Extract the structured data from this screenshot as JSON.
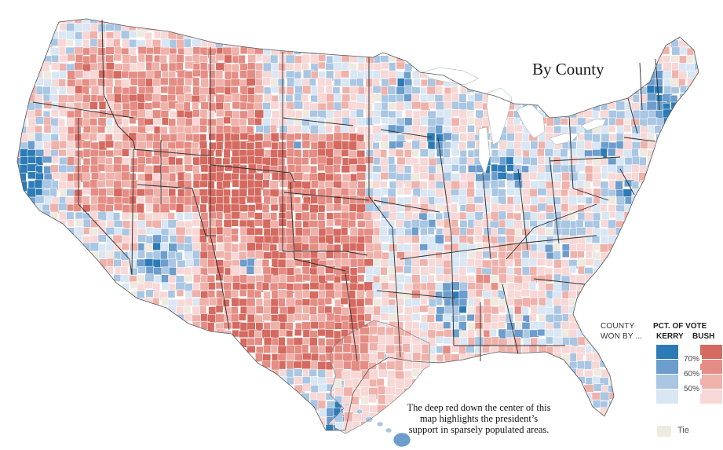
{
  "map": {
    "title": "By County",
    "caption_lines": [
      "The deep red down the center of this",
      "map highlights the president’s",
      "support in sparsely populated areas."
    ],
    "colors": {
      "bush": [
        "#f7d8d6",
        "#efb2ab",
        "#e48d84",
        "#d56a60"
      ],
      "kerry": [
        "#d9e6f3",
        "#a9c6e3",
        "#6c9dcc",
        "#2d7bb6"
      ],
      "tie": "#eeeae0",
      "state_border": "#2b2b2b",
      "county_border": "#ffffff"
    }
  },
  "legend": {
    "county_won_by_line1": "COUNTY",
    "county_won_by_line2": "WON BY",
    "dots": "...",
    "pct_of_vote": "PCT. OF VOTE",
    "kerry": "KERRY",
    "bush": "BUSH",
    "thresholds": [
      "70%",
      "60%",
      "50%"
    ],
    "tie": "Tie"
  }
}
